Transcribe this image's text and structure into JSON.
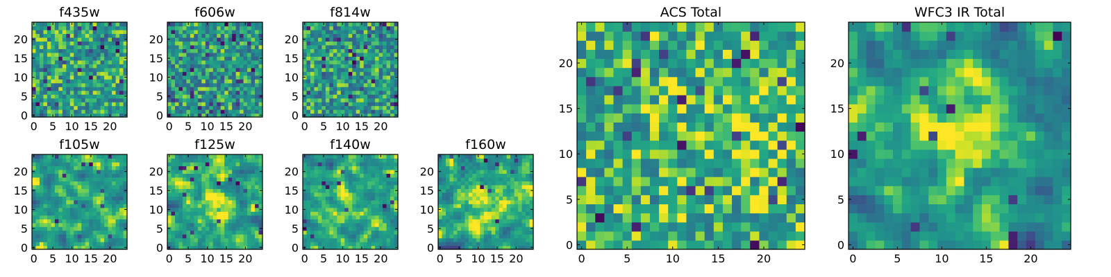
{
  "figure": {
    "description_colormap": "viridis",
    "panels_order": [
      "f435w",
      "f606w",
      "f814w",
      "ACS Total",
      "f105w",
      "f125w",
      "f140w",
      "f160w",
      "WFC3 IR Total"
    ]
  },
  "chart_data": [
    {
      "type": "heatmap",
      "title": "f435w",
      "seed": 11,
      "smooth": 0,
      "bias": 0.68,
      "dark_prob": 0.05,
      "dark_scale": 1.6,
      "blob": null,
      "grid_size": 25,
      "xlim": [
        0,
        24
      ],
      "ylim": [
        0,
        24
      ],
      "xticks": [
        0,
        5,
        10,
        15,
        20
      ],
      "yticks": [
        0,
        5,
        10,
        15,
        20
      ]
    },
    {
      "type": "heatmap",
      "title": "f606w",
      "seed": 23,
      "smooth": 0,
      "bias": 0.66,
      "dark_prob": 0.06,
      "dark_scale": 1.6,
      "blob": null,
      "grid_size": 25,
      "xlim": [
        0,
        24
      ],
      "ylim": [
        0,
        24
      ],
      "xticks": [
        0,
        5,
        10,
        15,
        20
      ],
      "yticks": [
        0,
        5,
        10,
        15,
        20
      ]
    },
    {
      "type": "heatmap",
      "title": "f814w",
      "seed": 37,
      "smooth": 0,
      "bias": 0.66,
      "dark_prob": 0.06,
      "dark_scale": 1.6,
      "blob": null,
      "grid_size": 25,
      "xlim": [
        0,
        24
      ],
      "ylim": [
        0,
        24
      ],
      "xticks": [
        0,
        5,
        10,
        15,
        20
      ],
      "yticks": [
        0,
        5,
        10,
        15,
        20
      ]
    },
    {
      "type": "heatmap",
      "title": "ACS Total",
      "seed": 51,
      "smooth": 0,
      "bias": 0.74,
      "dark_prob": 0.035,
      "dark_scale": 1.3,
      "blob": [
        17,
        13,
        4,
        0.12
      ],
      "grid_size": 25,
      "xlim": [
        0,
        24
      ],
      "ylim": [
        0,
        24
      ],
      "xticks": [
        0,
        5,
        10,
        15,
        20
      ],
      "yticks": [
        0,
        5,
        10,
        15,
        20
      ]
    },
    {
      "type": "heatmap",
      "title": "f105w",
      "seed": 63,
      "smooth": 1,
      "bias": 0.72,
      "dark_prob": 0.02,
      "dark_scale": 1.3,
      "blob": [
        12,
        12,
        4,
        0.18
      ],
      "grid_size": 25,
      "xlim": [
        0,
        24
      ],
      "ylim": [
        0,
        24
      ],
      "xticks": [
        0,
        5,
        10,
        15,
        20
      ],
      "yticks": [
        0,
        5,
        10,
        15,
        20
      ]
    },
    {
      "type": "heatmap",
      "title": "f125w",
      "seed": 77,
      "smooth": 1,
      "bias": 0.68,
      "dark_prob": 0.02,
      "dark_scale": 1.3,
      "blob": [
        12,
        12,
        4,
        0.15
      ],
      "grid_size": 25,
      "xlim": [
        0,
        24
      ],
      "ylim": [
        0,
        24
      ],
      "xticks": [
        0,
        5,
        10,
        15,
        20
      ],
      "yticks": [
        0,
        5,
        10,
        15,
        20
      ]
    },
    {
      "type": "heatmap",
      "title": "f140w",
      "seed": 89,
      "smooth": 1,
      "bias": 0.7,
      "dark_prob": 0.02,
      "dark_scale": 1.3,
      "blob": [
        12,
        12,
        4,
        0.16
      ],
      "grid_size": 25,
      "xlim": [
        0,
        24
      ],
      "ylim": [
        0,
        24
      ],
      "xticks": [
        0,
        5,
        10,
        15,
        20
      ],
      "yticks": [
        0,
        5,
        10,
        15,
        20
      ]
    },
    {
      "type": "heatmap",
      "title": "f160w",
      "seed": 97,
      "smooth": 1,
      "bias": 0.7,
      "dark_prob": 0.015,
      "dark_scale": 1.3,
      "blob": [
        12,
        12,
        4,
        0.18
      ],
      "grid_size": 25,
      "xlim": [
        0,
        24
      ],
      "ylim": [
        0,
        24
      ],
      "xticks": [
        0,
        5,
        10,
        15,
        20
      ],
      "yticks": [
        0,
        5,
        10,
        15,
        20
      ]
    },
    {
      "type": "heatmap",
      "title": "WFC3 IR Total",
      "seed": 111,
      "smooth": 1,
      "bias": 0.66,
      "dark_prob": 0.02,
      "dark_scale": 1.4,
      "blob": [
        12,
        12,
        4,
        0.28
      ],
      "grid_size": 25,
      "xlim": [
        0,
        24
      ],
      "ylim": [
        0,
        24
      ],
      "xticks": [
        0,
        5,
        10,
        15,
        20
      ],
      "yticks": [
        0,
        5,
        10,
        15,
        20
      ]
    }
  ]
}
